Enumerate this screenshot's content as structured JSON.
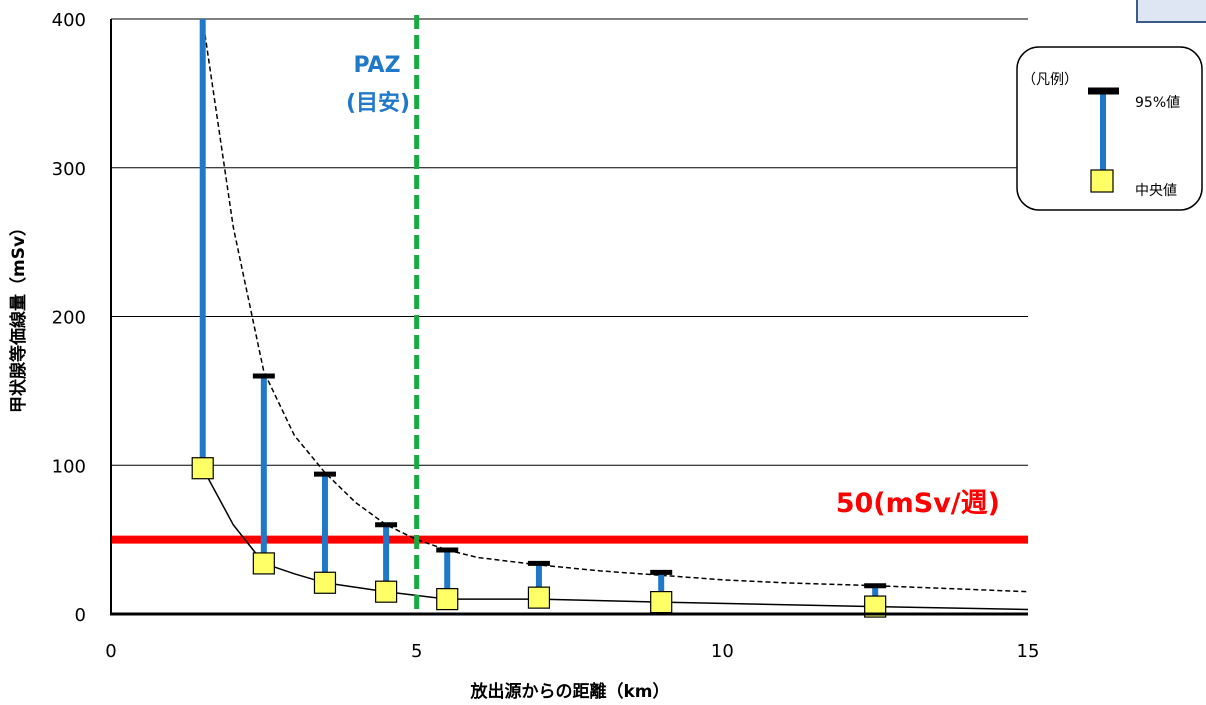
{
  "chart_data": {
    "type": "line",
    "xlabel": "放出源からの距離（km）",
    "ylabel": "甲状腺等価線量（mSv）",
    "xlim": [
      0,
      15
    ],
    "ylim": [
      0,
      400
    ],
    "x_ticks": [
      "0",
      "5",
      "10",
      "15"
    ],
    "y_ticks": [
      "0",
      "100",
      "200",
      "300",
      "400"
    ],
    "grid": "horizontal",
    "series": [
      {
        "name": "95%値",
        "x": [
          1.5,
          2.5,
          3.5,
          4.5,
          5.5,
          7.0,
          9.0,
          12.5
        ],
        "values": [
          400,
          160,
          94,
          60,
          43,
          34,
          28,
          19
        ]
      },
      {
        "name": "中央値",
        "x": [
          1.5,
          2.5,
          3.5,
          4.5,
          5.5,
          7.0,
          9.0,
          12.5
        ],
        "values": [
          98,
          34,
          21,
          15,
          10,
          11,
          8,
          5
        ]
      }
    ],
    "curve_95": {
      "x": [
        1.5,
        2.0,
        2.5,
        3.0,
        3.5,
        4.0,
        4.5,
        5.0,
        5.5,
        6.0,
        7.0,
        8.0,
        9.0,
        10.0,
        11.0,
        12.5,
        15.0
      ],
      "values": [
        400,
        260,
        163,
        120,
        95,
        75,
        60,
        50,
        43,
        38,
        33,
        29,
        26,
        23,
        21,
        19,
        15
      ]
    },
    "curve_median": {
      "x": [
        1.5,
        2.0,
        2.5,
        3.0,
        3.5,
        4.0,
        4.5,
        5.5,
        7.0,
        9.0,
        12.5,
        15.0
      ],
      "values": [
        98,
        60,
        34,
        27,
        21,
        18,
        15,
        10,
        10,
        8,
        5,
        3
      ]
    },
    "reference_line": {
      "value": 50,
      "label": "50(mSv/週)",
      "color": "#ff0000"
    },
    "paz_line": {
      "x": 5,
      "label_line1": "PAZ",
      "label_line2": "(目安)",
      "color": "#1aab40"
    },
    "colors": {
      "bar": "#1f78c8",
      "cap": "#000000",
      "marker": "#ffff66"
    }
  },
  "legend": {
    "title": "（凡例）",
    "item_95": "95%値",
    "item_median": "中央値"
  }
}
